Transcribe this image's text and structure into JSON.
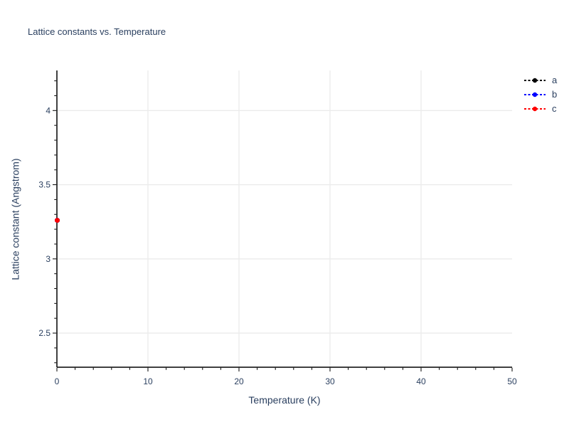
{
  "chart_data": {
    "type": "scatter",
    "title": "Lattice constants vs. Temperature",
    "xlabel": "Temperature (K)",
    "ylabel": "Lattice constant (Angstrom)",
    "xlim": [
      0,
      50
    ],
    "ylim": [
      2.27,
      4.27
    ],
    "x_ticks": [
      0,
      10,
      20,
      30,
      40,
      50
    ],
    "x_tick_labels": [
      "0",
      "10",
      "20",
      "30",
      "40",
      "50"
    ],
    "y_ticks": [
      2.5,
      3,
      3.5,
      4
    ],
    "y_tick_labels": [
      "2.5",
      "3",
      "3.5",
      "4"
    ],
    "x_minor_tick_step": 2,
    "y_minor_tick_step": 0.1,
    "grid": true,
    "legend_position": "outside-top-right",
    "series": [
      {
        "name": "a",
        "color": "#000000",
        "line_style": "dashed",
        "marker": "circle",
        "x": [
          0
        ],
        "y": [
          3.26
        ]
      },
      {
        "name": "b",
        "color": "#0000ff",
        "line_style": "dashed",
        "marker": "circle",
        "x": [
          0
        ],
        "y": [
          3.26
        ]
      },
      {
        "name": "c",
        "color": "#ff0000",
        "line_style": "dashed",
        "marker": "circle",
        "x": [
          0
        ],
        "y": [
          3.26
        ]
      }
    ]
  },
  "colors": {
    "background": "#ffffff",
    "text": "#2a3f5f",
    "axis_line": "#000000",
    "gridline": "#ebebeb"
  }
}
